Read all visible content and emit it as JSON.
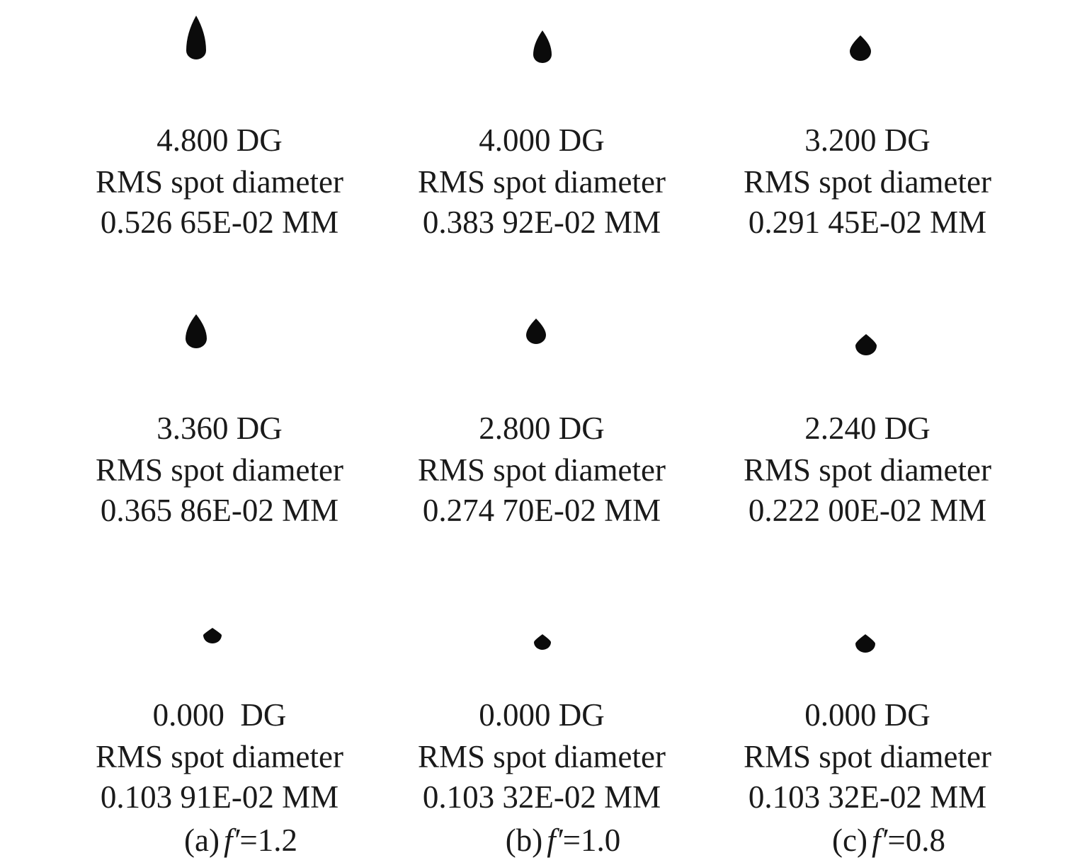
{
  "columns": [
    {
      "caption": {
        "label": "(a)",
        "symbol": "f′",
        "value": "=1.2"
      },
      "cells": [
        {
          "field": "4.800 DG",
          "metric": "RMS spot diameter",
          "result": "0.526 65E-02 MM"
        },
        {
          "field": "3.360 DG",
          "metric": "RMS spot diameter",
          "result": "0.365 86E-02 MM"
        },
        {
          "field": "0.000  DG",
          "metric": "RMS spot diameter",
          "result": "0.103 91E-02 MM"
        }
      ]
    },
    {
      "caption": {
        "label": "(b)",
        "symbol": "f′",
        "value": "=1.0"
      },
      "cells": [
        {
          "field": "4.000 DG",
          "metric": "RMS spot diameter",
          "result": "0.383 92E-02 MM"
        },
        {
          "field": "2.800 DG",
          "metric": "RMS spot diameter",
          "result": "0.274 70E-02 MM"
        },
        {
          "field": "0.000 DG",
          "metric": "RMS spot diameter",
          "result": "0.103 32E-02 MM"
        }
      ]
    },
    {
      "caption": {
        "label": "(c)",
        "symbol": "f′",
        "value": "=0.8"
      },
      "cells": [
        {
          "field": "3.200 DG",
          "metric": "RMS spot diameter",
          "result": "0.291 45E-02 MM"
        },
        {
          "field": "2.240 DG",
          "metric": "RMS spot diameter",
          "result": "0.222 00E-02 MM"
        },
        {
          "field": "0.000 DG",
          "metric": "RMS spot diameter",
          "result": "0.103 32E-02 MM"
        }
      ]
    }
  ]
}
